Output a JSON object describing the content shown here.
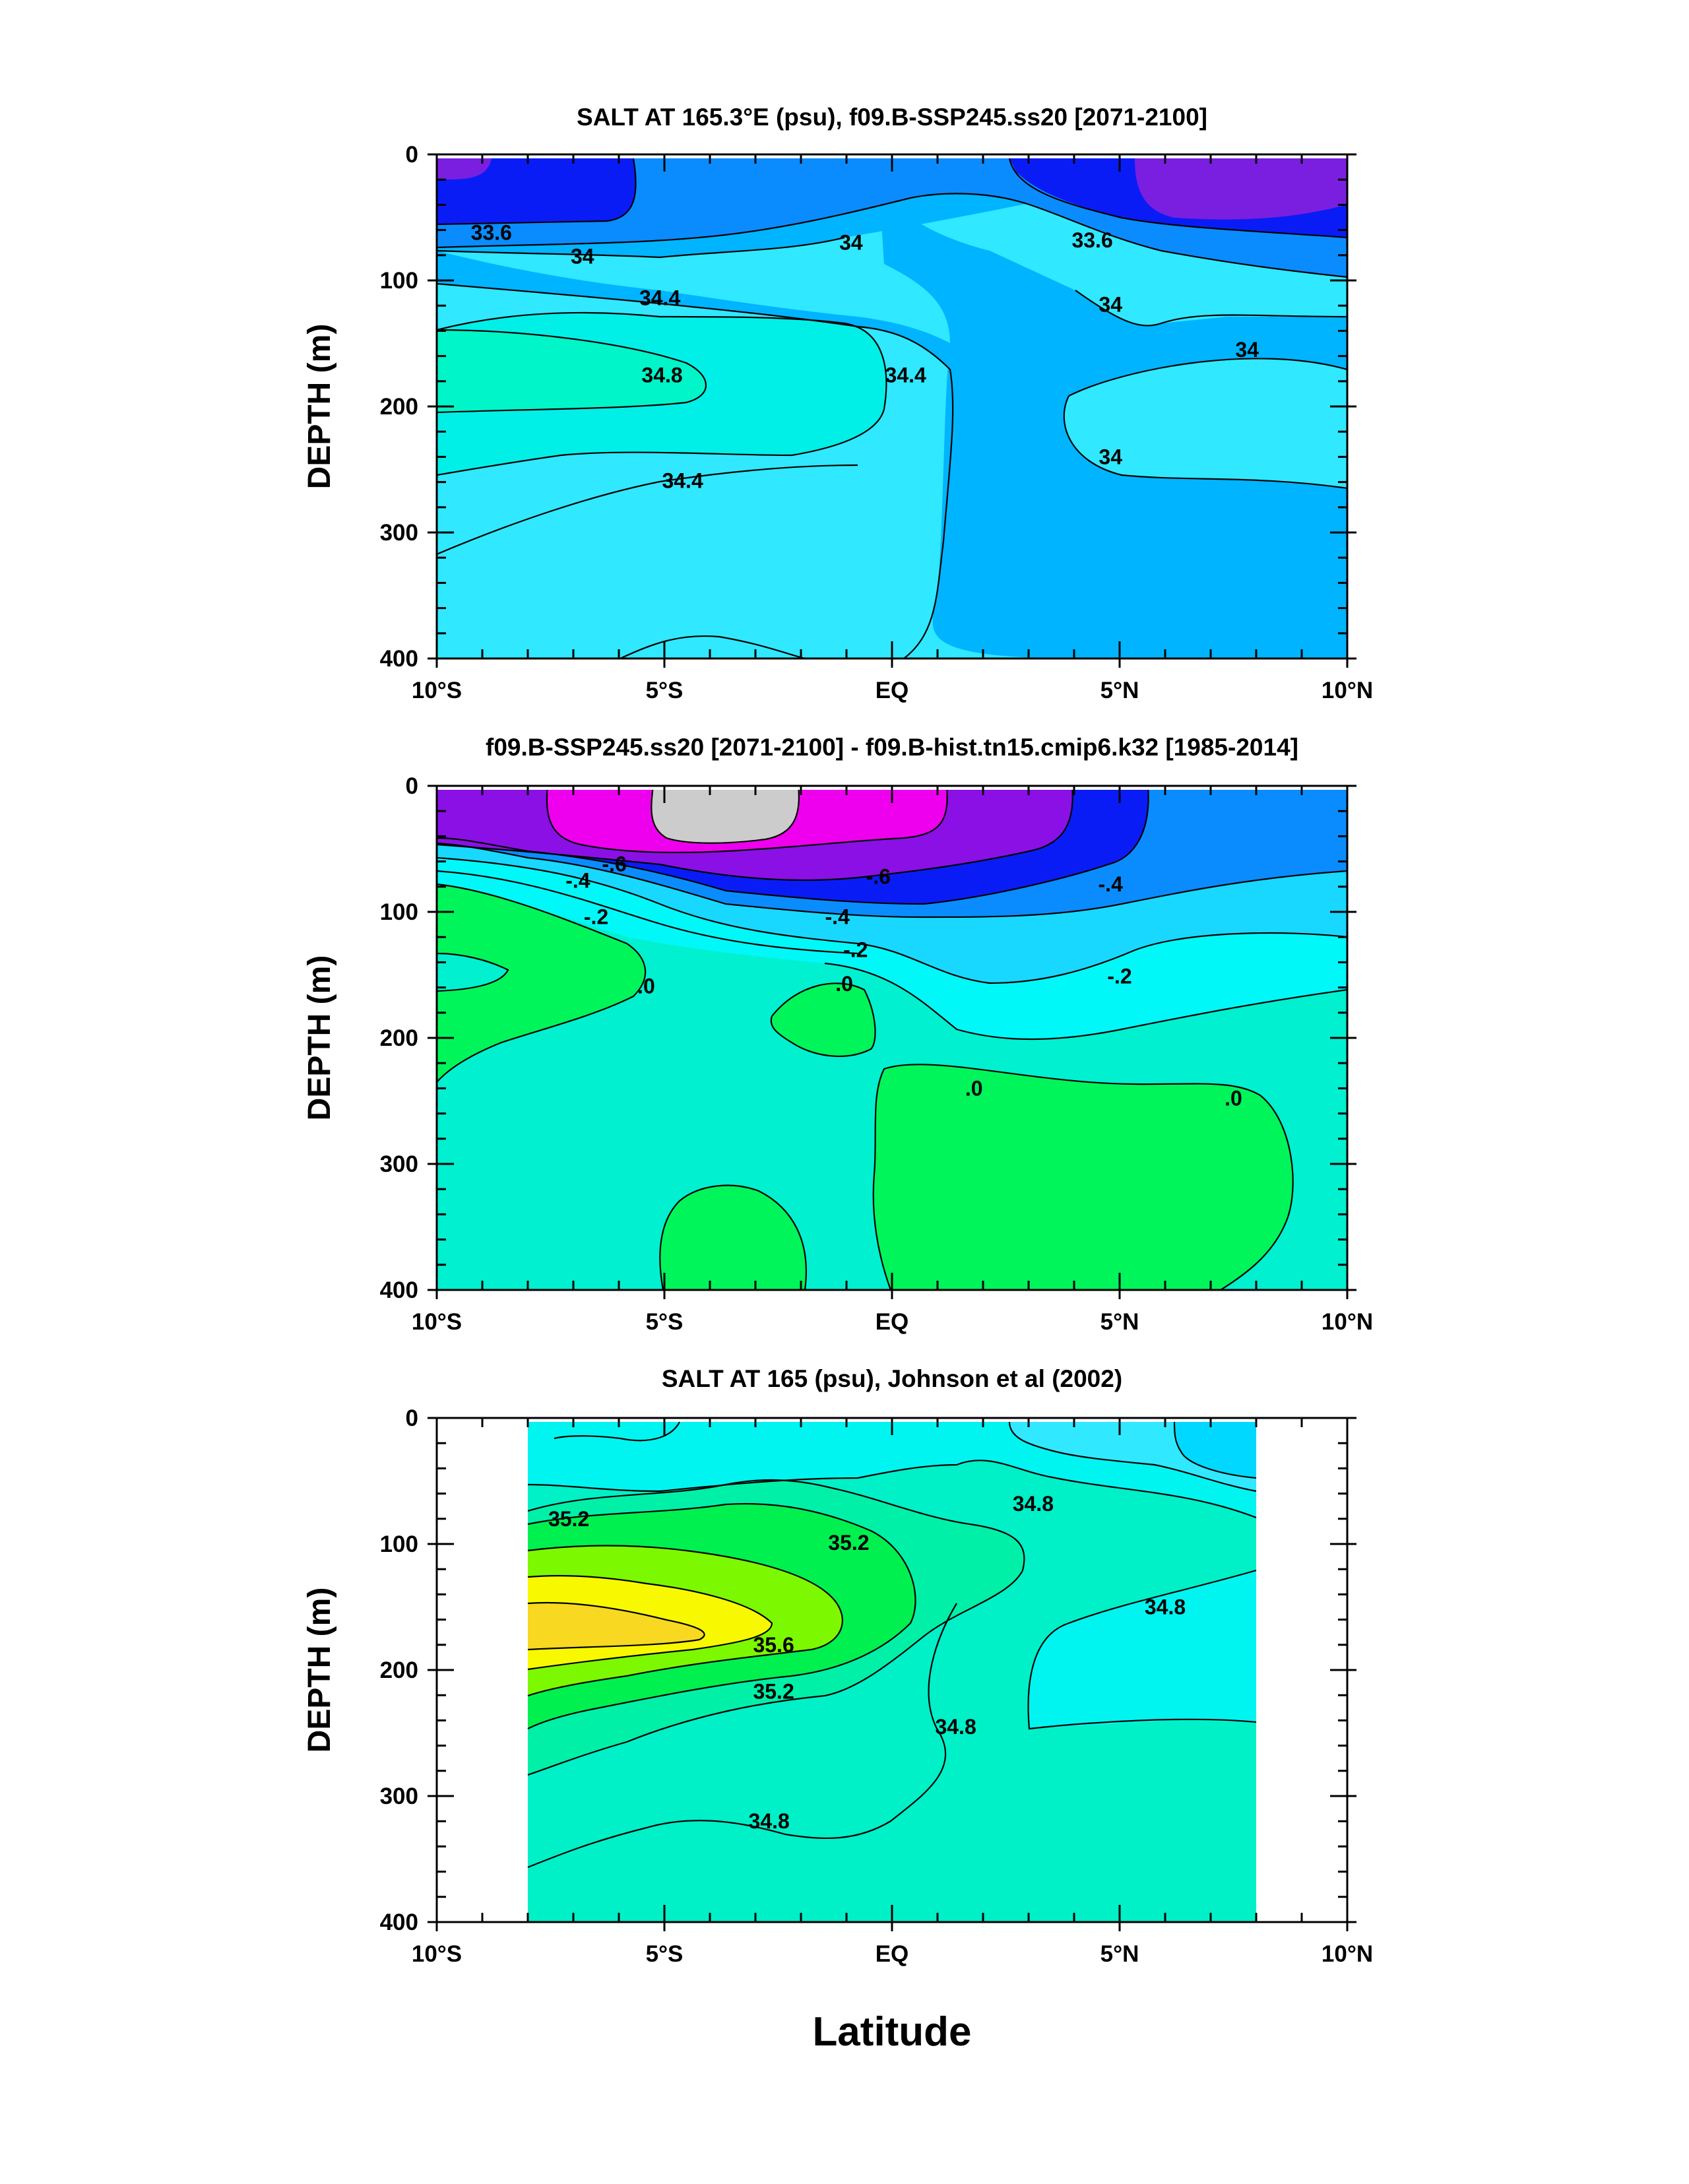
{
  "figure": {
    "xlabel": "Latitude"
  },
  "chart_data": [
    {
      "type": "contour",
      "title": "SALT AT 165.3°E (psu), f09.B-SSP245.ss20 [2071-2100]",
      "ylabel": "DEPTH (m)",
      "xlabel": "",
      "x_ticks": [
        "10°S",
        "5°S",
        "EQ",
        "5°N",
        "10°N"
      ],
      "x_tick_values": [
        -10,
        -5,
        0,
        5,
        10
      ],
      "y_ticks": [
        "0",
        "100",
        "200",
        "300",
        "400"
      ],
      "y_tick_values": [
        0,
        100,
        200,
        300,
        400
      ],
      "xlim": [
        -10,
        10
      ],
      "ylim": [
        400,
        0
      ],
      "y_reversed": true,
      "contour_labels": [
        {
          "text": "33.6",
          "lat": -8.8,
          "depth": 62
        },
        {
          "text": "34",
          "lat": -6.8,
          "depth": 81
        },
        {
          "text": "34.4",
          "lat": -5.1,
          "depth": 114
        },
        {
          "text": "34.8",
          "lat": -5.05,
          "depth": 175
        },
        {
          "text": "34.4",
          "lat": 0.3,
          "depth": 175
        },
        {
          "text": "34.4",
          "lat": -4.6,
          "depth": 259
        },
        {
          "text": "34",
          "lat": -0.9,
          "depth": 70
        },
        {
          "text": "33.6",
          "lat": 4.4,
          "depth": 68
        },
        {
          "text": "34",
          "lat": 4.8,
          "depth": 119
        },
        {
          "text": "34",
          "lat": 7.8,
          "depth": 155
        },
        {
          "text": "34",
          "lat": 4.8,
          "depth": 240
        }
      ],
      "colors": {
        "lt33_2": "#7a1fe0",
        "33_2_33_6": "#0a1cf5",
        "33_6_34_0": "#0a8cff",
        "34_0_34_4": "#00b4ff",
        "34_4_34_8": "#30e8ff",
        "34_8_35_2": "#00f0e8",
        "gt35_2": "#00f5c8"
      }
    },
    {
      "type": "contour",
      "title": "f09.B-SSP245.ss20 [2071-2100] - f09.B-hist.tn15.cmip6.k32 [1985-2014]",
      "ylabel": "DEPTH (m)",
      "xlabel": "",
      "x_ticks": [
        "10°S",
        "5°S",
        "EQ",
        "5°N",
        "10°N"
      ],
      "x_tick_values": [
        -10,
        -5,
        0,
        5,
        10
      ],
      "y_ticks": [
        "0",
        "100",
        "200",
        "300",
        "400"
      ],
      "y_tick_values": [
        0,
        100,
        200,
        300,
        400
      ],
      "xlim": [
        -10,
        10
      ],
      "ylim": [
        400,
        0
      ],
      "y_reversed": true,
      "contour_labels": [
        {
          "text": "-.6",
          "lat": -6.1,
          "depth": 62
        },
        {
          "text": "-.4",
          "lat": -6.9,
          "depth": 75
        },
        {
          "text": "-.2",
          "lat": -6.5,
          "depth": 104
        },
        {
          "text": ".0",
          "lat": -5.4,
          "depth": 159
        },
        {
          "text": "-.6",
          "lat": -0.3,
          "depth": 72
        },
        {
          "text": "-.4",
          "lat": -1.2,
          "depth": 104
        },
        {
          "text": "-.2",
          "lat": -0.8,
          "depth": 130
        },
        {
          "text": ".0",
          "lat": -1.05,
          "depth": 157
        },
        {
          "text": "-.4",
          "lat": 4.8,
          "depth": 78
        },
        {
          "text": "-.2",
          "lat": 5.0,
          "depth": 151
        },
        {
          "text": ".0",
          "lat": 1.8,
          "depth": 240
        },
        {
          "text": ".0",
          "lat": 7.5,
          "depth": 248
        }
      ],
      "colors": {
        "gray": "#cccccc",
        "magenta": "#ee00ee",
        "purple": "#8a10e6",
        "blue": "#0a1cf5",
        "mid_blue": "#0a8cff",
        "sky": "#18d8ff",
        "cyan": "#00f8f8",
        "teal": "#00f0d0",
        "green": "#00f55a"
      }
    },
    {
      "type": "contour",
      "title": "SALT AT 165 (psu), Johnson et al (2002)",
      "ylabel": "DEPTH (m)",
      "xlabel": "",
      "x_ticks": [
        "10°S",
        "5°S",
        "EQ",
        "5°N",
        "10°N"
      ],
      "x_tick_values": [
        -10,
        -5,
        0,
        5,
        10
      ],
      "y_ticks": [
        "0",
        "100",
        "200",
        "300",
        "400"
      ],
      "y_tick_values": [
        0,
        100,
        200,
        300,
        400
      ],
      "xlim": [
        -10,
        10
      ],
      "ylim": [
        400,
        0
      ],
      "y_reversed": true,
      "data_extent_lat": [
        -8,
        8
      ],
      "contour_labels": [
        {
          "text": "35.2",
          "lat": -7.1,
          "depth": 80
        },
        {
          "text": "35.2",
          "lat": -0.95,
          "depth": 99
        },
        {
          "text": "34.8",
          "lat": 3.1,
          "depth": 68
        },
        {
          "text": "34.8",
          "lat": 6.0,
          "depth": 150
        },
        {
          "text": "35.6",
          "lat": -2.6,
          "depth": 180
        },
        {
          "text": "35.2",
          "lat": -2.6,
          "depth": 217
        },
        {
          "text": "34.8",
          "lat": 1.4,
          "depth": 245
        },
        {
          "text": "34.8",
          "lat": -2.7,
          "depth": 320
        }
      ],
      "colors": {
        "sky": "#00d8ff",
        "light_cyan": "#30e8ff",
        "cyan": "#00f5f0",
        "teal": "#00f0c8",
        "teal2": "#00f0a8",
        "green": "#00f050",
        "lime": "#7cf800",
        "yellow": "#f8f800",
        "gold": "#f8d820"
      }
    }
  ]
}
